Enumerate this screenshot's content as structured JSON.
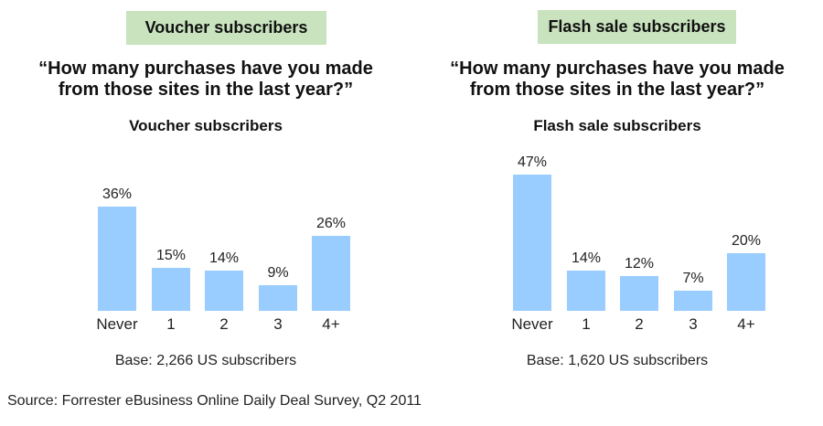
{
  "left_panel": {
    "tag": "Voucher subscribers",
    "question_line1": "“How many purchases have you made",
    "question_line2": "from those sites in the last year?”",
    "subtitle": "Voucher subscribers",
    "base": "Base: 2,266 US subscribers"
  },
  "right_panel": {
    "tag": "Flash sale subscribers",
    "question_line1": "“How many purchases have you made",
    "question_line2": "from those sites in the last year?”",
    "subtitle": "Flash sale subscribers",
    "base": "Base: 1,620 US subscribers"
  },
  "source": "Source: Forrester eBusiness Online Daily Deal Survey, Q2 2011",
  "colors": {
    "bar": "#99ccff",
    "tag_background": "#c8e3bd"
  },
  "chart_data": [
    {
      "type": "bar",
      "title": "Voucher subscribers",
      "question": "“How many purchases have you made from those sites in the last year?”",
      "categories": [
        "Never",
        "1",
        "2",
        "3",
        "4+"
      ],
      "values": [
        36,
        15,
        14,
        9,
        26
      ],
      "labels": [
        "36%",
        "15%",
        "14%",
        "9%",
        "26%"
      ],
      "unit": "%",
      "xlabel": "",
      "ylabel": "",
      "grid": false,
      "note": "Base: 2,266 US subscribers"
    },
    {
      "type": "bar",
      "title": "Flash sale subscribers",
      "question": "“How many purchases have you made from those sites in the last year?”",
      "categories": [
        "Never",
        "1",
        "2",
        "3",
        "4+"
      ],
      "values": [
        47,
        14,
        12,
        7,
        20
      ],
      "labels": [
        "47%",
        "14%",
        "12%",
        "7%",
        "20%"
      ],
      "unit": "%",
      "xlabel": "",
      "ylabel": "",
      "grid": false,
      "note": "Base: 1,620 US subscribers"
    }
  ]
}
